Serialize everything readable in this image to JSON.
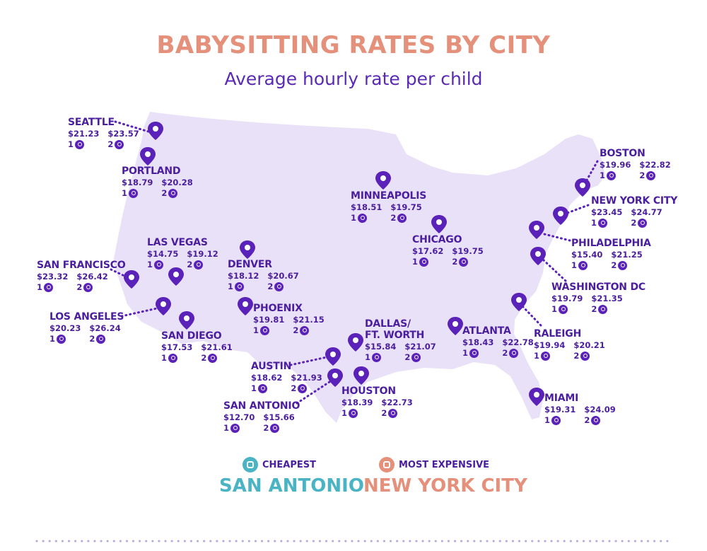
{
  "header": {
    "title": "BABYSITTING RATES BY CITY",
    "subtitle": "Average hourly rate per child"
  },
  "colors": {
    "map_fill": "#e9e1f7",
    "accent_purple": "#5a22b8",
    "text_purple": "#4a1e9e",
    "title_coral": "#e4907a",
    "cheapest_teal": "#4ab4c4",
    "expensive_coral": "#e4907a"
  },
  "kids_labels": {
    "one": "1",
    "two": "2"
  },
  "kid_icon": "child-face-icon",
  "pin_icon": "map-pin-icon",
  "cities": [
    {
      "id": "seattle",
      "name": "SEATTLE",
      "rate_1": "$21.23",
      "rate_2": "$23.57"
    },
    {
      "id": "portland",
      "name": "PORTLAND",
      "rate_1": "$18.79",
      "rate_2": "$20.28"
    },
    {
      "id": "las-vegas",
      "name": "LAS VEGAS",
      "rate_1": "$14.75",
      "rate_2": "$19.12"
    },
    {
      "id": "san-francisco",
      "name": "SAN FRANCISCO",
      "rate_1": "$23.32",
      "rate_2": "$26.42"
    },
    {
      "id": "los-angeles",
      "name": "LOS ANGELES",
      "rate_1": "$20.23",
      "rate_2": "$26.24"
    },
    {
      "id": "san-diego",
      "name": "SAN DIEGO",
      "rate_1": "$17.53",
      "rate_2": "$21.61"
    },
    {
      "id": "denver",
      "name": "DENVER",
      "rate_1": "$18.12",
      "rate_2": "$20.67"
    },
    {
      "id": "phoenix",
      "name": "PHOENIX",
      "rate_1": "$19.81",
      "rate_2": "$21.15"
    },
    {
      "id": "minneapolis",
      "name": "MINNEAPOLIS",
      "rate_1": "$18.51",
      "rate_2": "$19.75"
    },
    {
      "id": "chicago",
      "name": "CHICAGO",
      "rate_1": "$17.62",
      "rate_2": "$19.75"
    },
    {
      "id": "dallas",
      "name_line1": "DALLAS/",
      "name_line2": "FT. WORTH",
      "rate_1": "$15.84",
      "rate_2": "$21.07"
    },
    {
      "id": "austin",
      "name": "AUSTIN",
      "rate_1": "$18.62",
      "rate_2": "$21.93"
    },
    {
      "id": "san-antonio",
      "name": "SAN ANTONIO",
      "rate_1": "$12.70",
      "rate_2": "$15.66"
    },
    {
      "id": "houston",
      "name": "HOUSTON",
      "rate_1": "$18.39",
      "rate_2": "$22.73"
    },
    {
      "id": "atlanta",
      "name": "ATLANTA",
      "rate_1": "$18.43",
      "rate_2": "$22.78"
    },
    {
      "id": "raleigh",
      "name": "RALEIGH",
      "rate_1": "$19.94",
      "rate_2": "$20.21"
    },
    {
      "id": "miami",
      "name": "MIAMI",
      "rate_1": "$19.31",
      "rate_2": "$24.09"
    },
    {
      "id": "boston",
      "name": "BOSTON",
      "rate_1": "$19.96",
      "rate_2": "$22.82"
    },
    {
      "id": "new-york-city",
      "name": "NEW YORK CITY",
      "rate_1": "$23.45",
      "rate_2": "$24.77"
    },
    {
      "id": "philadelphia",
      "name": "PHILADELPHIA",
      "rate_1": "$15.40",
      "rate_2": "$21.25"
    },
    {
      "id": "washington-dc",
      "name": "WASHINGTON DC",
      "rate_1": "$19.79",
      "rate_2": "$21.35"
    }
  ],
  "legend": {
    "cheapest_label": "CHEAPEST",
    "cheapest_city": "SAN ANTONIO",
    "cheapest_icon": "stroller-icon",
    "expensive_label": "MOST EXPENSIVE",
    "expensive_city": "NEW YORK CITY",
    "expensive_icon": "stroller-icon"
  }
}
